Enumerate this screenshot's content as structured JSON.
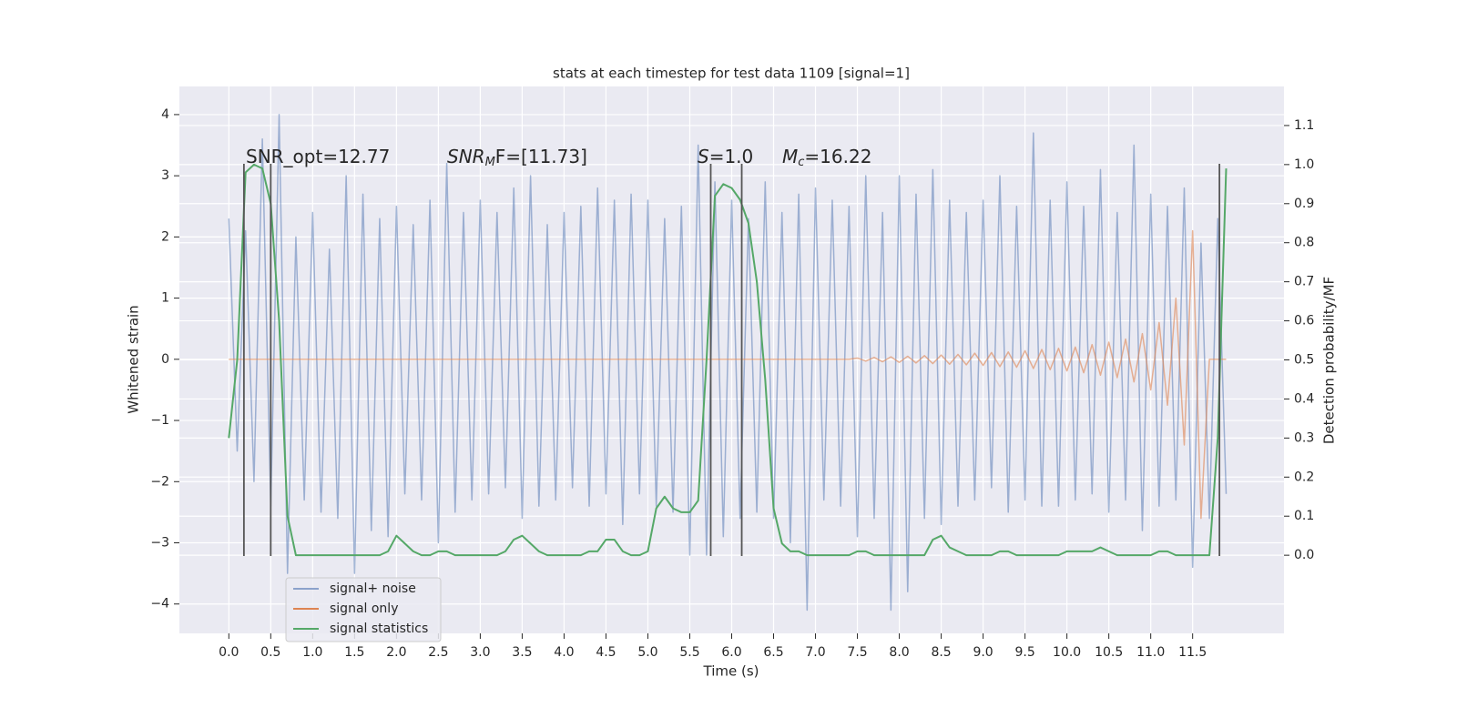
{
  "chart_data": {
    "type": "line",
    "title": "stats at each timestep for test data 1109 [signal=1]",
    "x_label": "Time (s)",
    "y_label": "Whitened strain",
    "y2_label": "Detection probability/MF",
    "x": [
      0.0,
      0.1,
      0.2,
      0.3,
      0.4,
      0.5,
      0.6,
      0.7,
      0.8,
      0.9,
      1.0,
      1.1,
      1.2,
      1.3,
      1.4,
      1.5,
      1.6,
      1.7,
      1.8,
      1.9,
      2.0,
      2.1,
      2.2,
      2.3,
      2.4,
      2.5,
      2.6,
      2.7,
      2.8,
      2.9,
      3.0,
      3.1,
      3.2,
      3.3,
      3.4,
      3.5,
      3.6,
      3.7,
      3.8,
      3.9,
      4.0,
      4.1,
      4.2,
      4.3,
      4.4,
      4.5,
      4.6,
      4.7,
      4.8,
      4.9,
      5.0,
      5.1,
      5.2,
      5.3,
      5.4,
      5.5,
      5.6,
      5.7,
      5.8,
      5.9,
      6.0,
      6.1,
      6.2,
      6.3,
      6.4,
      6.5,
      6.6,
      6.7,
      6.8,
      6.9,
      7.0,
      7.1,
      7.2,
      7.3,
      7.4,
      7.5,
      7.6,
      7.7,
      7.8,
      7.9,
      8.0,
      8.1,
      8.2,
      8.3,
      8.4,
      8.5,
      8.6,
      8.7,
      8.8,
      8.9,
      9.0,
      9.1,
      9.2,
      9.3,
      9.4,
      9.5,
      9.6,
      9.7,
      9.8,
      9.9,
      10.0,
      10.1,
      10.2,
      10.3,
      10.4,
      10.5,
      10.6,
      10.7,
      10.8,
      10.9,
      11.0,
      11.1,
      11.2,
      11.3,
      11.4,
      11.5,
      11.6,
      11.7,
      11.8,
      11.9
    ],
    "series": [
      {
        "name": "signal+ noise",
        "color": "#4c72b0",
        "values": [
          2.3,
          -1.5,
          2.1,
          -2.0,
          3.6,
          -2.4,
          4.0,
          -3.5,
          2.0,
          -2.3,
          2.4,
          -2.5,
          1.8,
          -2.6,
          3.0,
          -3.5,
          2.7,
          -2.8,
          2.3,
          -2.9,
          2.5,
          -2.2,
          2.2,
          -2.3,
          2.6,
          -3.0,
          3.2,
          -2.5,
          2.4,
          -2.3,
          2.6,
          -2.2,
          2.4,
          -2.1,
          2.8,
          -2.6,
          3.0,
          -2.4,
          2.2,
          -2.3,
          2.4,
          -2.1,
          2.5,
          -2.4,
          2.8,
          -2.2,
          2.6,
          -2.7,
          2.7,
          -2.2,
          2.6,
          -2.4,
          2.3,
          -2.5,
          2.5,
          -3.2,
          3.5,
          -3.2,
          2.9,
          -2.9,
          2.6,
          -2.6,
          2.3,
          -2.5,
          2.9,
          -2.6,
          2.4,
          -3.0,
          2.7,
          -4.1,
          2.8,
          -2.3,
          2.6,
          -2.4,
          2.5,
          -2.9,
          3.0,
          -2.6,
          2.4,
          -4.1,
          3.0,
          -3.8,
          2.7,
          -2.6,
          3.1,
          -2.7,
          2.6,
          -2.4,
          2.4,
          -2.3,
          2.6,
          -2.1,
          3.0,
          -2.5,
          2.5,
          -2.3,
          3.7,
          -2.4,
          2.6,
          -2.4,
          2.9,
          -2.3,
          2.5,
          -2.2,
          3.1,
          -2.5,
          2.4,
          -2.3,
          3.5,
          -2.8,
          2.7,
          -2.4,
          2.5,
          -2.3,
          2.8,
          -3.4,
          1.9,
          -2.6,
          2.3,
          -2.2
        ]
      },
      {
        "name": "signal only",
        "color": "#dd8452",
        "values": [
          0,
          0,
          0,
          0,
          0,
          0,
          0,
          0,
          0,
          0,
          0,
          0,
          0,
          0,
          0,
          0,
          0,
          0,
          0,
          0,
          0,
          0,
          0,
          0,
          0,
          0,
          0,
          0,
          0,
          0,
          0,
          0,
          0,
          0,
          0,
          0,
          0,
          0,
          0,
          0,
          0,
          0,
          0,
          0,
          0,
          0,
          0,
          0,
          0,
          0,
          0,
          0,
          0,
          0,
          0,
          0,
          0,
          0,
          0,
          0,
          0,
          0,
          0,
          0,
          0,
          0,
          0,
          0,
          0,
          0,
          0,
          0,
          0,
          0,
          0,
          0.02,
          -0.03,
          0.03,
          -0.04,
          0.04,
          -0.05,
          0.05,
          -0.06,
          0.06,
          -0.07,
          0.07,
          -0.08,
          0.08,
          -0.09,
          0.1,
          -0.1,
          0.11,
          -0.12,
          0.12,
          -0.13,
          0.14,
          -0.15,
          0.16,
          -0.17,
          0.18,
          -0.19,
          0.2,
          -0.22,
          0.24,
          -0.26,
          0.28,
          -0.3,
          0.33,
          -0.37,
          0.42,
          -0.5,
          0.6,
          -0.75,
          1.0,
          -1.4,
          2.1,
          -2.6,
          0,
          0,
          0
        ]
      },
      {
        "name": "signal statistics",
        "color": "#55a868",
        "axis": "y2",
        "values": [
          0.3,
          0.5,
          0.98,
          1.0,
          0.99,
          0.9,
          0.6,
          0.1,
          0.0,
          0.0,
          0,
          0,
          0,
          0,
          0,
          0,
          0,
          0,
          0,
          0.01,
          0.05,
          0.03,
          0.01,
          0,
          0,
          0.01,
          0.01,
          0,
          0,
          0,
          0,
          0,
          0,
          0.01,
          0.04,
          0.05,
          0.03,
          0.01,
          0,
          0,
          0,
          0,
          0,
          0.01,
          0.01,
          0.04,
          0.04,
          0.01,
          0,
          0,
          0.01,
          0.12,
          0.15,
          0.12,
          0.11,
          0.11,
          0.14,
          0.5,
          0.92,
          0.95,
          0.94,
          0.91,
          0.85,
          0.7,
          0.45,
          0.12,
          0.03,
          0.01,
          0.01,
          0.0,
          0,
          0,
          0,
          0,
          0,
          0.01,
          0.01,
          0,
          0,
          0,
          0,
          0,
          0,
          0,
          0.04,
          0.05,
          0.02,
          0.01,
          0,
          0,
          0,
          0,
          0.01,
          0.01,
          0,
          0,
          0,
          0,
          0,
          0,
          0.01,
          0.01,
          0.01,
          0.01,
          0.02,
          0.01,
          0,
          0,
          0,
          0,
          0,
          0.01,
          0.01,
          0,
          0,
          0,
          0,
          0,
          0.3,
          0.99
        ]
      }
    ],
    "vlines": [
      0.18,
      0.5,
      5.75,
      6.12,
      11.82
    ],
    "vline_color": "#555555",
    "annotations": [
      [
        {
          "text": "SNR_opt=12.77"
        }
      ],
      [
        {
          "text": "SNR",
          "style": "italic"
        },
        {
          "text": "M",
          "style": "sub"
        },
        {
          "text": "F=[11.73]"
        }
      ],
      [
        {
          "text": "S",
          "style": "italic"
        },
        {
          "text": "=1.0"
        }
      ],
      [
        {
          "text": "M",
          "style": "italic"
        },
        {
          "text": "c",
          "style": "sub"
        },
        {
          "text": "=16.22"
        }
      ]
    ],
    "xlim": [
      -0.59,
      12.59
    ],
    "ylim": [
      -4.48,
      4.46
    ],
    "y2lim": [
      -0.2,
      1.2
    ],
    "xticks": [
      {
        "value": 0,
        "label": "0.0"
      },
      {
        "value": 0.5,
        "label": "0.5"
      },
      {
        "value": 1,
        "label": "1.0"
      },
      {
        "value": 1.5,
        "label": "1.5"
      },
      {
        "value": 2,
        "label": "2.0"
      },
      {
        "value": 2.5,
        "label": "2.5"
      },
      {
        "value": 3,
        "label": "3.0"
      },
      {
        "value": 3.5,
        "label": "3.5"
      },
      {
        "value": 4,
        "label": "4.0"
      },
      {
        "value": 4.5,
        "label": "4.5"
      },
      {
        "value": 5,
        "label": "5.0"
      },
      {
        "value": 5.5,
        "label": "5.5"
      },
      {
        "value": 6,
        "label": "6.0"
      },
      {
        "value": 6.5,
        "label": "6.5"
      },
      {
        "value": 7,
        "label": "7.0"
      },
      {
        "value": 7.5,
        "label": "7.5"
      },
      {
        "value": 8,
        "label": "8.0"
      },
      {
        "value": 8.5,
        "label": "8.5"
      },
      {
        "value": 9,
        "label": "9.0"
      },
      {
        "value": 9.5,
        "label": "9.5"
      },
      {
        "value": 10,
        "label": "10.0"
      },
      {
        "value": 10.5,
        "label": "10.5"
      },
      {
        "value": 11,
        "label": "11.0"
      },
      {
        "value": 11.5,
        "label": "11.5"
      }
    ],
    "yticks": [
      {
        "value": -4,
        "label": "−4"
      },
      {
        "value": -3,
        "label": "−3"
      },
      {
        "value": -2,
        "label": "−2"
      },
      {
        "value": -1,
        "label": "−1"
      },
      0,
      1,
      2,
      3,
      4
    ],
    "y2ticks": [
      {
        "value": 0,
        "label": "0.0"
      },
      {
        "value": 0.1,
        "label": "0.1"
      },
      {
        "value": 0.2,
        "label": "0.2"
      },
      {
        "value": 0.3,
        "label": "0.3"
      },
      {
        "value": 0.4,
        "label": "0.4"
      },
      {
        "value": 0.5,
        "label": "0.5"
      },
      {
        "value": 0.6,
        "label": "0.6"
      },
      {
        "value": 0.7,
        "label": "0.7"
      },
      {
        "value": 0.8,
        "label": "0.8"
      },
      {
        "value": 0.9,
        "label": "0.9"
      },
      {
        "value": 1,
        "label": "1.0"
      },
      {
        "value": 1.1,
        "label": "1.1"
      }
    ],
    "grid": true,
    "background": "#eaeaf2",
    "legend": "lower left"
  }
}
